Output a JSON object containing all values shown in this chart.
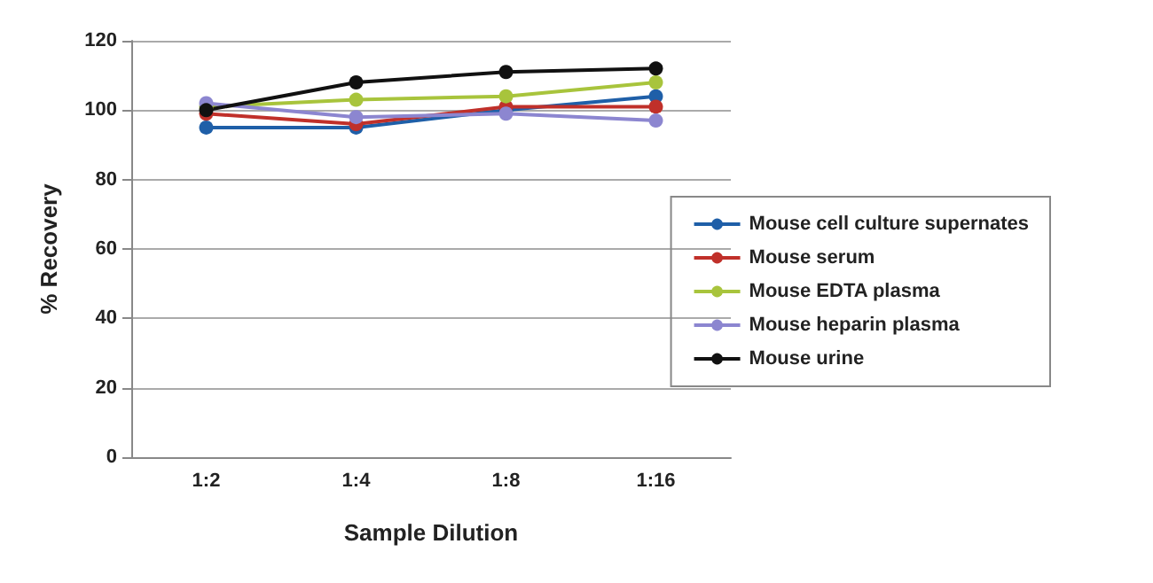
{
  "chart_data": {
    "type": "line",
    "xlabel": "Sample Dilution",
    "ylabel": "% Recovery",
    "categories": [
      "1:2",
      "1:4",
      "1:8",
      "1:16"
    ],
    "ylim": [
      0,
      120
    ],
    "yticks": [
      0,
      20,
      40,
      60,
      80,
      100,
      120
    ],
    "grid": "y",
    "legend": "right",
    "marker": "circle",
    "series": [
      {
        "name": "Mouse cell culture supernates",
        "color": "#1f5fa8",
        "values": [
          95,
          95,
          100,
          104
        ]
      },
      {
        "name": "Mouse serum",
        "color": "#c0302a",
        "values": [
          99,
          96,
          101,
          101
        ]
      },
      {
        "name": "Mouse EDTA plasma",
        "color": "#a8c43c",
        "values": [
          101,
          103,
          104,
          108
        ]
      },
      {
        "name": "Mouse heparin plasma",
        "color": "#8c86d0",
        "values": [
          102,
          98,
          99,
          97
        ]
      },
      {
        "name": "Mouse urine",
        "color": "#111111",
        "values": [
          100,
          108,
          111,
          112
        ]
      }
    ]
  }
}
